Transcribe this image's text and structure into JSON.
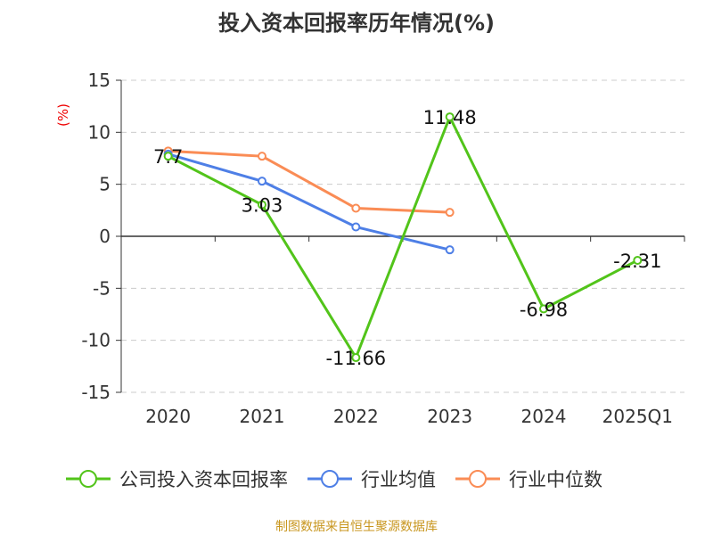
{
  "chart_data": {
    "type": "line",
    "title": "投入资本回报率历年情况(%)",
    "ylabel": "(%)",
    "categories": [
      "2020",
      "2021",
      "2022",
      "2023",
      "2024",
      "2025Q1"
    ],
    "ylim": [
      -15,
      15
    ],
    "yticks": [
      15,
      10,
      5,
      0,
      -5,
      -10,
      -15
    ],
    "series": [
      {
        "name": "公司投入资本回报率",
        "color": "#52c41a",
        "values": [
          7.7,
          3.03,
          -11.66,
          11.48,
          -6.98,
          -2.31
        ],
        "labels": [
          "7.7",
          "3.03",
          "-11.66",
          "11.48",
          "-6.98",
          "-2.31"
        ]
      },
      {
        "name": "行业均值",
        "color": "#4e7fe6",
        "values": [
          7.9,
          5.3,
          0.9,
          -1.3,
          null,
          null
        ]
      },
      {
        "name": "行业中位数",
        "color": "#fa8c55",
        "values": [
          8.2,
          7.7,
          2.7,
          2.3,
          null,
          null
        ]
      }
    ],
    "legend": "bottom"
  },
  "source": "制图数据来自恒生聚源数据库"
}
